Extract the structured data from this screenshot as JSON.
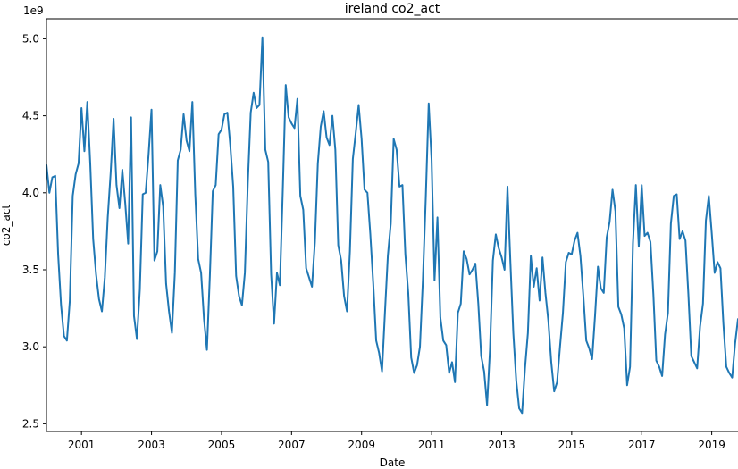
{
  "chart_data": {
    "type": "line",
    "title": "ireland co2_act",
    "xlabel": "Date",
    "ylabel": "co2_act",
    "y_offset_label": "1e9",
    "y_multiplier": 1000000000,
    "x_start": 2000.0,
    "x_step": 0.083333,
    "xlim": [
      2000.0,
      2019.75
    ],
    "ylim": [
      2.45,
      5.13
    ],
    "x_ticks": [
      2001,
      2003,
      2005,
      2007,
      2009,
      2011,
      2013,
      2015,
      2017,
      2019
    ],
    "x_tick_labels": [
      "2001",
      "2003",
      "2005",
      "2007",
      "2009",
      "2011",
      "2013",
      "2015",
      "2017",
      "2019"
    ],
    "y_ticks": [
      2.5,
      3.0,
      3.5,
      4.0,
      4.5,
      5.0
    ],
    "y_tick_labels": [
      "2.5",
      "3.0",
      "3.5",
      "4.0",
      "4.5",
      "5.0"
    ],
    "grid": false,
    "series": [
      {
        "color": "#1f77b4",
        "values": [
          4.18,
          4.0,
          4.1,
          4.11,
          3.6,
          3.27,
          3.07,
          3.04,
          3.3,
          3.98,
          4.12,
          4.19,
          4.55,
          4.27,
          4.59,
          4.19,
          3.7,
          3.47,
          3.31,
          3.23,
          3.45,
          3.84,
          4.13,
          4.48,
          4.05,
          3.9,
          4.15,
          3.93,
          3.67,
          4.49,
          3.2,
          3.05,
          3.37,
          3.99,
          4.0,
          4.25,
          4.54,
          3.56,
          3.62,
          4.05,
          3.91,
          3.41,
          3.23,
          3.09,
          3.48,
          4.21,
          4.28,
          4.51,
          4.34,
          4.27,
          4.59,
          3.99,
          3.57,
          3.48,
          3.18,
          2.98,
          3.46,
          4.01,
          4.05,
          4.38,
          4.41,
          4.51,
          4.52,
          4.31,
          4.04,
          3.46,
          3.33,
          3.27,
          3.48,
          4.06,
          4.52,
          4.65,
          4.55,
          4.57,
          5.01,
          4.28,
          4.2,
          3.47,
          3.15,
          3.48,
          3.4,
          4.02,
          4.7,
          4.49,
          4.45,
          4.42,
          4.61,
          3.98,
          3.89,
          3.51,
          3.45,
          3.39,
          3.68,
          4.19,
          4.43,
          4.53,
          4.36,
          4.31,
          4.5,
          4.28,
          3.66,
          3.56,
          3.33,
          3.23,
          3.62,
          4.22,
          4.39,
          4.57,
          4.35,
          4.02,
          4.0,
          3.73,
          3.41,
          3.04,
          2.96,
          2.84,
          3.22,
          3.59,
          3.8,
          4.35,
          4.28,
          4.04,
          4.05,
          3.6,
          3.35,
          2.93,
          2.83,
          2.88,
          3.0,
          3.43,
          3.97,
          4.58,
          4.21,
          3.43,
          3.84,
          3.19,
          3.04,
          3.01,
          2.83,
          2.9,
          2.77,
          3.22,
          3.28,
          3.62,
          3.57,
          3.47,
          3.5,
          3.54,
          3.28,
          2.94,
          2.84,
          2.62,
          2.98,
          3.56,
          3.73,
          3.64,
          3.58,
          3.5,
          4.04,
          3.55,
          3.09,
          2.78,
          2.6,
          2.57,
          2.86,
          3.09,
          3.59,
          3.39,
          3.51,
          3.3,
          3.58,
          3.35,
          3.17,
          2.9,
          2.71,
          2.77,
          3.0,
          3.22,
          3.55,
          3.61,
          3.6,
          3.69,
          3.74,
          3.59,
          3.33,
          3.04,
          2.99,
          2.92,
          3.2,
          3.52,
          3.38,
          3.35,
          3.71,
          3.81,
          4.02,
          3.88,
          3.26,
          3.21,
          3.12,
          2.75,
          2.87,
          3.67,
          4.05,
          3.65,
          4.05,
          3.72,
          3.74,
          3.68,
          3.34,
          2.91,
          2.87,
          2.81,
          3.08,
          3.22,
          3.8,
          3.98,
          3.99,
          3.7,
          3.75,
          3.69,
          3.34,
          2.94,
          2.9,
          2.86,
          3.13,
          3.28,
          3.82,
          3.98,
          3.74,
          3.48,
          3.55,
          3.51,
          3.15,
          2.87,
          2.83,
          2.8,
          3.02,
          3.18
        ]
      }
    ]
  }
}
